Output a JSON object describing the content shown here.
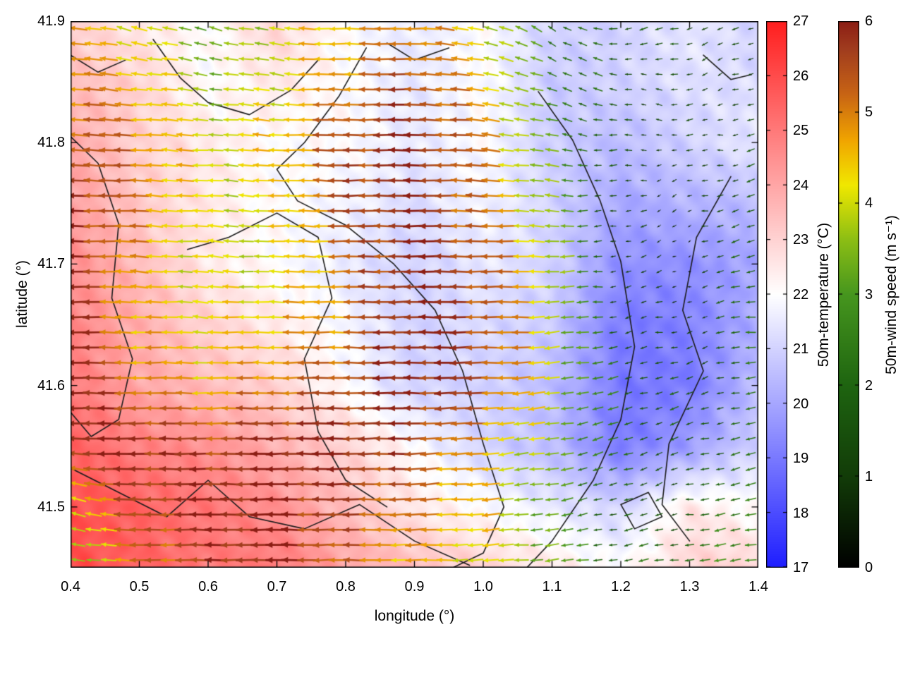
{
  "figure": {
    "xlabel": "longitude (°)",
    "ylabel": "latitude (°)",
    "x_ticks": [
      0.4,
      0.5,
      0.6,
      0.7,
      0.8,
      0.9,
      1.0,
      1.1,
      1.2,
      1.3,
      1.4
    ],
    "x_tick_labels": [
      "0.4",
      "0.5",
      "0.6",
      "0.7",
      "0.8",
      "0.9",
      "1.0",
      "1.1",
      "1.2",
      "1.3",
      "1.4"
    ],
    "y_ticks": [
      41.5,
      41.6,
      41.7,
      41.8,
      41.9
    ],
    "y_tick_labels": [
      "41.5",
      "41.6",
      "41.7",
      "41.8",
      "41.9"
    ]
  },
  "chart_data": {
    "type": "heatmap",
    "overlay": "quiver",
    "title": "",
    "xlabel": "longitude (°)",
    "ylabel": "latitude (°)",
    "xlim": [
      0.4,
      1.4
    ],
    "ylim": [
      41.45,
      41.9
    ],
    "temperature": {
      "label": "50m-temperature (°C)",
      "units": "°C",
      "range": [
        17,
        27
      ],
      "ticks": [
        "17",
        "18",
        "19",
        "20",
        "21",
        "22",
        "23",
        "24",
        "25",
        "26",
        "27"
      ],
      "colormap": [
        {
          "v": 17,
          "c": "#1e1eff"
        },
        {
          "v": 19.5,
          "c": "#9090ff"
        },
        {
          "v": 22,
          "c": "#ffffff"
        },
        {
          "v": 24.5,
          "c": "#ff9090"
        },
        {
          "v": 27,
          "c": "#ff1e1e"
        }
      ],
      "lon": [
        0.4,
        0.5,
        0.6,
        0.7,
        0.8,
        0.9,
        1.0,
        1.1,
        1.2,
        1.3,
        1.4
      ],
      "lat": [
        41.9,
        41.85,
        41.8,
        41.75,
        41.7,
        41.65,
        41.6,
        41.55,
        41.5,
        41.45
      ],
      "values": [
        [
          23.0,
          22.5,
          22.0,
          23.0,
          22.0,
          21.5,
          22.0,
          21.0,
          21.0,
          21.5,
          21.0
        ],
        [
          23.5,
          23.0,
          22.0,
          22.5,
          22.0,
          21.5,
          22.0,
          20.8,
          21.0,
          21.3,
          21.2
        ],
        [
          24.0,
          23.0,
          22.5,
          22.0,
          22.0,
          21.5,
          22.0,
          20.8,
          20.5,
          21.0,
          21.5
        ],
        [
          24.2,
          23.2,
          22.5,
          22.0,
          21.8,
          21.2,
          21.8,
          21.0,
          20.0,
          20.3,
          20.5
        ],
        [
          24.5,
          23.5,
          22.5,
          22.0,
          21.5,
          21.0,
          21.5,
          21.0,
          19.5,
          19.5,
          20.0
        ],
        [
          24.8,
          23.8,
          23.0,
          22.5,
          21.8,
          21.0,
          21.2,
          20.8,
          19.0,
          19.2,
          20.2
        ],
        [
          25.0,
          24.0,
          23.5,
          23.0,
          22.0,
          21.0,
          21.0,
          20.5,
          19.0,
          19.0,
          20.5
        ],
        [
          25.5,
          24.8,
          24.5,
          23.8,
          23.0,
          22.0,
          21.0,
          20.5,
          19.0,
          19.8,
          21.0
        ],
        [
          26.0,
          25.5,
          25.0,
          24.5,
          23.5,
          22.5,
          22.0,
          21.5,
          21.0,
          22.5,
          22.0
        ],
        [
          26.0,
          25.5,
          25.0,
          25.0,
          24.0,
          23.5,
          23.0,
          22.5,
          22.0,
          23.0,
          23.0
        ]
      ]
    },
    "wind": {
      "label": "50m-wind speed (m s⁻¹)",
      "units": "m s⁻¹",
      "range": [
        0,
        6
      ],
      "ticks": [
        "0",
        "1",
        "2",
        "3",
        "4",
        "5",
        "6"
      ],
      "colormap": [
        {
          "v": 0,
          "c": "#000000"
        },
        {
          "v": 1,
          "c": "#123c08"
        },
        {
          "v": 2,
          "c": "#1e6410"
        },
        {
          "v": 3,
          "c": "#46961e"
        },
        {
          "v": 3.6,
          "c": "#8cbe14"
        },
        {
          "v": 4.2,
          "c": "#f0e800"
        },
        {
          "v": 4.7,
          "c": "#f0a400"
        },
        {
          "v": 5.2,
          "c": "#c86414"
        },
        {
          "v": 5.7,
          "c": "#a03c1e"
        },
        {
          "v": 6,
          "c": "#8c1e14"
        }
      ],
      "lon": [
        0.4,
        0.5,
        0.6,
        0.7,
        0.8,
        0.9,
        1.0,
        1.1,
        1.2,
        1.3,
        1.4
      ],
      "lat": [
        41.9,
        41.85,
        41.8,
        41.75,
        41.7,
        41.65,
        41.6,
        41.55,
        41.5,
        41.45
      ],
      "u": [
        [
          -4.5,
          -4.0,
          -3.0,
          -4.0,
          -4.5,
          -5.0,
          -4.0,
          -2.0,
          -2.0,
          -1.5,
          -1.0
        ],
        [
          -5.0,
          -4.5,
          -3.5,
          -4.0,
          -5.0,
          -5.5,
          -4.5,
          -2.5,
          -1.5,
          -1.2,
          -1.0
        ],
        [
          -5.5,
          -5.0,
          -4.0,
          -4.5,
          -5.5,
          -6.0,
          -5.0,
          -3.0,
          -1.5,
          -1.0,
          -1.5
        ],
        [
          -6.0,
          -5.0,
          -4.0,
          -4.2,
          -5.5,
          -6.0,
          -5.0,
          -3.5,
          -1.0,
          -0.8,
          -2.0
        ],
        [
          -6.0,
          -4.5,
          -4.0,
          -4.0,
          -5.0,
          -6.0,
          -5.5,
          -4.0,
          -1.0,
          -0.5,
          -2.5
        ],
        [
          -6.0,
          -4.5,
          -4.2,
          -4.5,
          -5.0,
          -6.0,
          -5.5,
          -4.0,
          -1.5,
          -1.0,
          -2.5
        ],
        [
          -6.0,
          -5.0,
          -4.5,
          -5.0,
          -5.5,
          -6.0,
          -5.5,
          -4.0,
          -2.0,
          -1.5,
          -2.0
        ],
        [
          -6.0,
          -6.0,
          -5.5,
          -6.0,
          -6.0,
          -5.5,
          -4.5,
          -3.5,
          -2.0,
          -1.5,
          -2.5
        ],
        [
          -4.0,
          -5.5,
          -6.0,
          -6.0,
          -5.5,
          -5.0,
          -4.5,
          -3.0,
          -1.5,
          -1.5,
          -3.0
        ],
        [
          -3.0,
          -5.0,
          -5.5,
          -6.0,
          -5.0,
          -4.5,
          -4.0,
          -3.5,
          -2.0,
          -2.5,
          -3.0
        ]
      ],
      "v": [
        [
          0.5,
          1.0,
          0.8,
          0.5,
          0.0,
          0.0,
          1.0,
          1.5,
          -0.5,
          -0.5,
          -0.3
        ],
        [
          0.5,
          0.5,
          0.5,
          0.5,
          0.0,
          0.2,
          0.8,
          1.0,
          0.5,
          -0.3,
          -0.5
        ],
        [
          0.3,
          0.3,
          0.3,
          0.2,
          0.0,
          0.0,
          0.5,
          0.5,
          0.0,
          0.0,
          -0.5
        ],
        [
          0.0,
          0.2,
          0.3,
          0.2,
          0.0,
          0.0,
          0.3,
          0.3,
          -0.3,
          -0.3,
          -0.5
        ],
        [
          0.0,
          0.3,
          0.3,
          0.2,
          0.0,
          0.0,
          0.0,
          0.0,
          -0.3,
          -0.3,
          -0.5
        ],
        [
          0.0,
          0.2,
          0.2,
          0.0,
          0.0,
          0.0,
          0.0,
          -0.3,
          -0.3,
          -0.3,
          -0.3
        ],
        [
          0.0,
          0.0,
          0.0,
          0.0,
          0.0,
          0.0,
          -0.2,
          -0.5,
          -0.5,
          -0.5,
          -0.3
        ],
        [
          0.0,
          0.0,
          0.0,
          0.0,
          0.0,
          -0.2,
          -0.5,
          -0.5,
          -0.8,
          -0.5,
          -0.5
        ],
        [
          1.5,
          0.0,
          0.0,
          0.0,
          0.0,
          -0.3,
          -0.3,
          -0.5,
          -0.5,
          -0.3,
          -0.5
        ],
        [
          0.5,
          0.0,
          0.0,
          0.0,
          0.0,
          0.0,
          -0.3,
          -0.3,
          -0.3,
          -0.3,
          -0.5
        ]
      ]
    },
    "contours": [
      [
        [
          0.52,
          41.885
        ],
        [
          0.56,
          41.853
        ],
        [
          0.6,
          41.833
        ],
        [
          0.66,
          41.823
        ],
        [
          0.72,
          41.843
        ],
        [
          0.76,
          41.868
        ]
      ],
      [
        [
          0.4,
          41.805
        ],
        [
          0.44,
          41.783
        ],
        [
          0.47,
          41.733
        ],
        [
          0.46,
          41.672
        ],
        [
          0.49,
          41.622
        ],
        [
          0.47,
          41.572
        ],
        [
          0.43,
          41.558
        ],
        [
          0.4,
          41.578
        ]
      ],
      [
        [
          0.83,
          41.878
        ],
        [
          0.79,
          41.838
        ],
        [
          0.74,
          41.8
        ],
        [
          0.7,
          41.778
        ],
        [
          0.73,
          41.752
        ],
        [
          0.8,
          41.732
        ],
        [
          0.87,
          41.7
        ],
        [
          0.93,
          41.662
        ],
        [
          0.97,
          41.612
        ],
        [
          1.0,
          41.552
        ],
        [
          1.03,
          41.5
        ],
        [
          1.0,
          41.462
        ],
        [
          0.93,
          41.443
        ]
      ],
      [
        [
          0.57,
          41.712
        ],
        [
          0.63,
          41.722
        ],
        [
          0.7,
          41.742
        ],
        [
          0.76,
          41.722
        ],
        [
          0.78,
          41.672
        ],
        [
          0.74,
          41.622
        ],
        [
          0.76,
          41.562
        ],
        [
          0.8,
          41.522
        ],
        [
          0.86,
          41.5
        ]
      ],
      [
        [
          1.36,
          41.772
        ],
        [
          1.31,
          41.722
        ],
        [
          1.29,
          41.662
        ],
        [
          1.32,
          41.612
        ],
        [
          1.27,
          41.552
        ],
        [
          1.26,
          41.502
        ],
        [
          1.3,
          41.472
        ]
      ],
      [
        [
          0.4,
          41.532
        ],
        [
          0.47,
          41.512
        ],
        [
          0.54,
          41.492
        ],
        [
          0.6,
          41.522
        ],
        [
          0.66,
          41.492
        ],
        [
          0.74,
          41.482
        ],
        [
          0.82,
          41.502
        ],
        [
          0.9,
          41.472
        ],
        [
          0.98,
          41.452
        ]
      ],
      [
        [
          1.08,
          41.842
        ],
        [
          1.13,
          41.802
        ],
        [
          1.17,
          41.752
        ],
        [
          1.2,
          41.702
        ],
        [
          1.22,
          41.632
        ],
        [
          1.2,
          41.572
        ],
        [
          1.16,
          41.522
        ],
        [
          1.1,
          41.472
        ],
        [
          1.05,
          41.442
        ]
      ],
      [
        [
          1.2,
          41.502
        ],
        [
          1.24,
          41.512
        ],
        [
          1.26,
          41.492
        ],
        [
          1.22,
          41.482
        ],
        [
          1.2,
          41.502
        ]
      ],
      [
        [
          1.32,
          41.872
        ],
        [
          1.36,
          41.852
        ],
        [
          1.39,
          41.856
        ]
      ],
      [
        [
          0.86,
          41.882
        ],
        [
          0.9,
          41.868
        ],
        [
          0.95,
          41.878
        ]
      ],
      [
        [
          0.4,
          41.872
        ],
        [
          0.44,
          41.858
        ],
        [
          0.48,
          41.868
        ]
      ]
    ]
  }
}
